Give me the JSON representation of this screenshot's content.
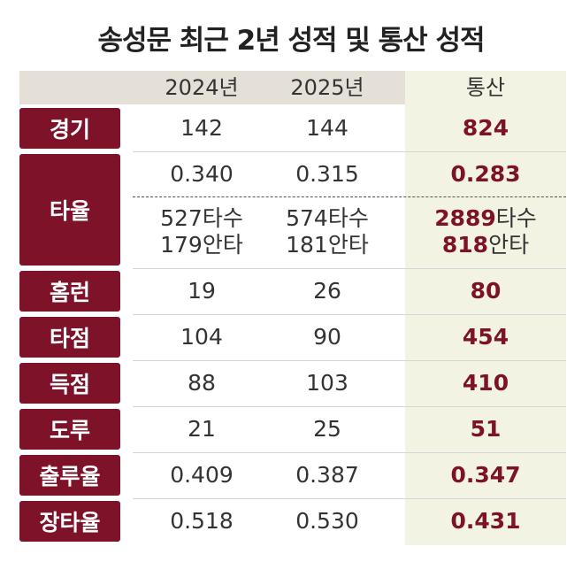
{
  "title": "송성문 최근 2년 성적 및 통산 성적",
  "header": [
    "2024년",
    "2025년",
    "통산"
  ],
  "rows": [
    {
      "label": "경기",
      "values": [
        "142",
        "144",
        "824"
      ]
    },
    {
      "label": "타율",
      "values": [
        "0.340",
        "0.315",
        "0.283"
      ],
      "details": [
        [
          {
            "num": "527",
            "unit": "타수"
          },
          {
            "num": "179",
            "unit": "안타"
          }
        ],
        [
          {
            "num": "574",
            "unit": "타수"
          },
          {
            "num": "181",
            "unit": "안타"
          }
        ],
        [
          {
            "num": "2889",
            "unit": "타수"
          },
          {
            "num": "818",
            "unit": "안타"
          }
        ]
      ]
    },
    {
      "label": "홈런",
      "values": [
        "19",
        "26",
        "80"
      ]
    },
    {
      "label": "타점",
      "values": [
        "104",
        "90",
        "454"
      ]
    },
    {
      "label": "득점",
      "values": [
        "88",
        "103",
        "410"
      ]
    },
    {
      "label": "도루",
      "values": [
        "21",
        "25",
        "51"
      ]
    },
    {
      "label": "출루율",
      "values": [
        "0.409",
        "0.387",
        "0.347"
      ]
    },
    {
      "label": "장타율",
      "values": [
        "0.518",
        "0.530",
        "0.431"
      ]
    }
  ]
}
